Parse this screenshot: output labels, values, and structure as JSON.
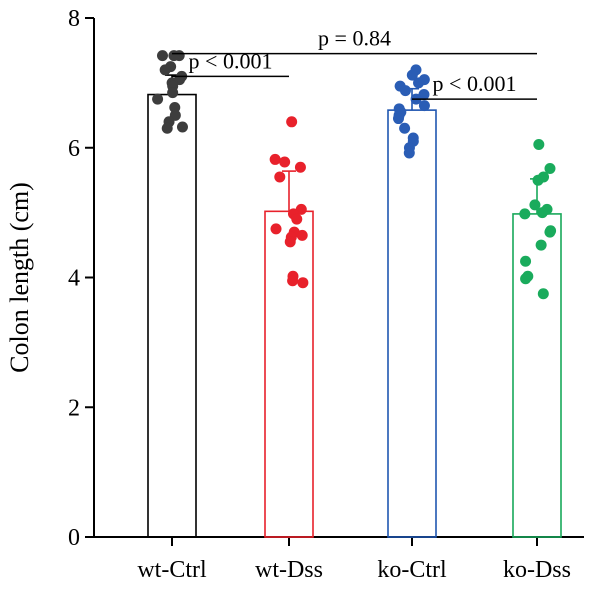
{
  "chart_data": {
    "type": "bar",
    "ylabel": "Colon length (cm)",
    "ylim": [
      0,
      8
    ],
    "yticks": [
      "0",
      "2",
      "4",
      "6",
      "8"
    ],
    "categories": [
      "wt-Ctrl",
      "wt-Dss",
      "ko-Ctrl",
      "ko-Dss"
    ],
    "values": [
      6.82,
      5.02,
      6.58,
      4.98
    ],
    "sd": [
      0.3,
      0.62,
      0.33,
      0.54
    ],
    "colors": [
      "#000000",
      "#e8212b",
      "#1f56b0",
      "#18a85a"
    ],
    "point_colors": [
      "#3d3d3d",
      "#e8212b",
      "#2a5db5",
      "#1aab5c"
    ],
    "points": [
      [
        7.42,
        7.42,
        7.42,
        7.25,
        7.2,
        7.1,
        7.05,
        7.0,
        6.95,
        6.85,
        6.75,
        6.62,
        6.5,
        6.4,
        6.32,
        6.3
      ],
      [
        6.4,
        5.82,
        5.78,
        5.7,
        5.55,
        5.05,
        4.98,
        4.9,
        4.75,
        4.7,
        4.65,
        4.62,
        4.55,
        4.02,
        3.95,
        3.92
      ],
      [
        7.2,
        7.12,
        7.05,
        7.0,
        6.95,
        6.88,
        6.82,
        6.75,
        6.65,
        6.6,
        6.55,
        6.5,
        6.45,
        6.3,
        6.15,
        6.1,
        6.0,
        5.92
      ],
      [
        6.05,
        5.68,
        5.55,
        5.5,
        5.12,
        5.05,
        5.0,
        4.98,
        4.72,
        4.7,
        4.5,
        4.25,
        4.02,
        3.98,
        3.75
      ]
    ],
    "annotations": [
      {
        "from": 0,
        "to": 1,
        "y": 7.1,
        "text": "p < 0.001"
      },
      {
        "from": 0,
        "to": 3,
        "y": 7.45,
        "text": "p = 0.84"
      },
      {
        "from": 2,
        "to": 3,
        "y": 6.75,
        "text": "p < 0.001"
      }
    ]
  }
}
